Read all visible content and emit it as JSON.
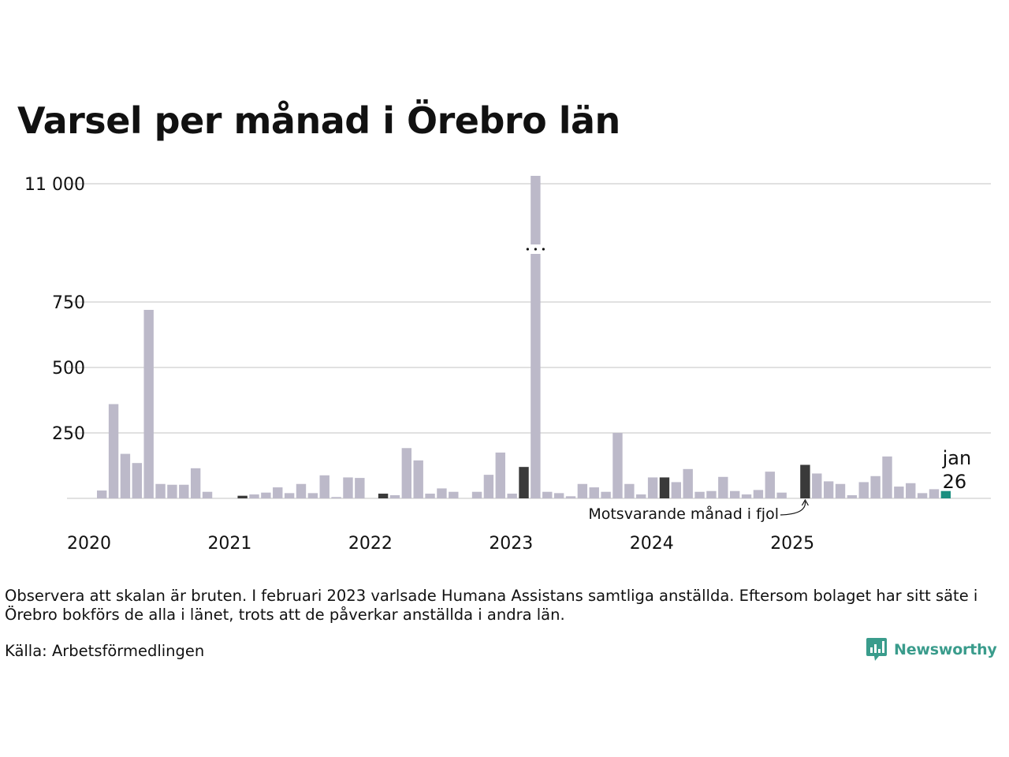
{
  "colors": {
    "bar": "#bcb9c9",
    "highlight": "#3a3a3a",
    "latest": "#1a8f80",
    "gridline": "#e1e1e1",
    "brand": "#3a9c8c"
  },
  "chart_data": {
    "type": "bar",
    "title": "Varsel per månad i Örebro län",
    "xlabel": "",
    "ylabel": "",
    "y_broken_axis": true,
    "y_ticks": [
      "11 000",
      "750",
      "500",
      "250"
    ],
    "x_ticks": [
      "2020",
      "2021",
      "2022",
      "2023",
      "2024",
      "2025"
    ],
    "grid": true,
    "x": [
      "2020-01",
      "2020-02",
      "2020-03",
      "2020-04",
      "2020-05",
      "2020-06",
      "2020-07",
      "2020-08",
      "2020-09",
      "2020-10",
      "2020-11",
      "2020-12",
      "2021-01",
      "2021-02",
      "2021-03",
      "2021-04",
      "2021-05",
      "2021-06",
      "2021-07",
      "2021-08",
      "2021-09",
      "2021-10",
      "2021-11",
      "2021-12",
      "2022-01",
      "2022-02",
      "2022-03",
      "2022-04",
      "2022-05",
      "2022-06",
      "2022-07",
      "2022-08",
      "2022-09",
      "2022-10",
      "2022-11",
      "2022-12",
      "2023-01",
      "2023-02",
      "2023-03",
      "2023-04",
      "2023-05",
      "2023-06",
      "2023-07",
      "2023-08",
      "2023-09",
      "2023-10",
      "2023-11",
      "2023-12",
      "2024-01",
      "2024-02",
      "2024-03",
      "2024-04",
      "2024-05",
      "2024-06",
      "2024-07",
      "2024-08",
      "2024-09",
      "2024-10",
      "2024-11",
      "2024-12",
      "2025-01",
      "2025-02",
      "2025-03",
      "2025-04",
      "2025-05",
      "2025-06",
      "2025-07",
      "2025-08",
      "2025-09",
      "2025-10",
      "2025-11",
      "2025-12",
      "2026-01"
    ],
    "values": [
      30,
      360,
      170,
      135,
      720,
      55,
      52,
      52,
      115,
      25,
      0,
      0,
      10,
      15,
      22,
      42,
      20,
      55,
      20,
      88,
      5,
      80,
      78,
      0,
      18,
      12,
      192,
      145,
      18,
      38,
      25,
      0,
      25,
      90,
      175,
      18,
      120,
      11000,
      25,
      20,
      8,
      55,
      42,
      25,
      250,
      55,
      15,
      80,
      80,
      62,
      112,
      25,
      28,
      82,
      28,
      15,
      32,
      102,
      22,
      0,
      128,
      95,
      65,
      55,
      12,
      62,
      85,
      160,
      45,
      58,
      20,
      35,
      28
    ],
    "highlighted": [
      "2021-01",
      "2022-01",
      "2023-01",
      "2024-01",
      "2025-01"
    ],
    "latest": "2026-01",
    "annotations": {
      "same_month_last_year": "Motsvarande månad i fjol",
      "latest_month": "jan",
      "latest_year": "26"
    }
  },
  "note": "Observera att skalan är bruten. I februari 2023 varlsade Humana Assistans samtliga anställda. Eftersom bolaget har sitt säte i Örebro bokförs de alla i länet, trots att de påverkar anställda i andra län.",
  "source": "Källa: Arbetsförmedlingen",
  "logo": {
    "text": "Newsworthy",
    "icon": "newsworthy-bar-chart-icon"
  }
}
